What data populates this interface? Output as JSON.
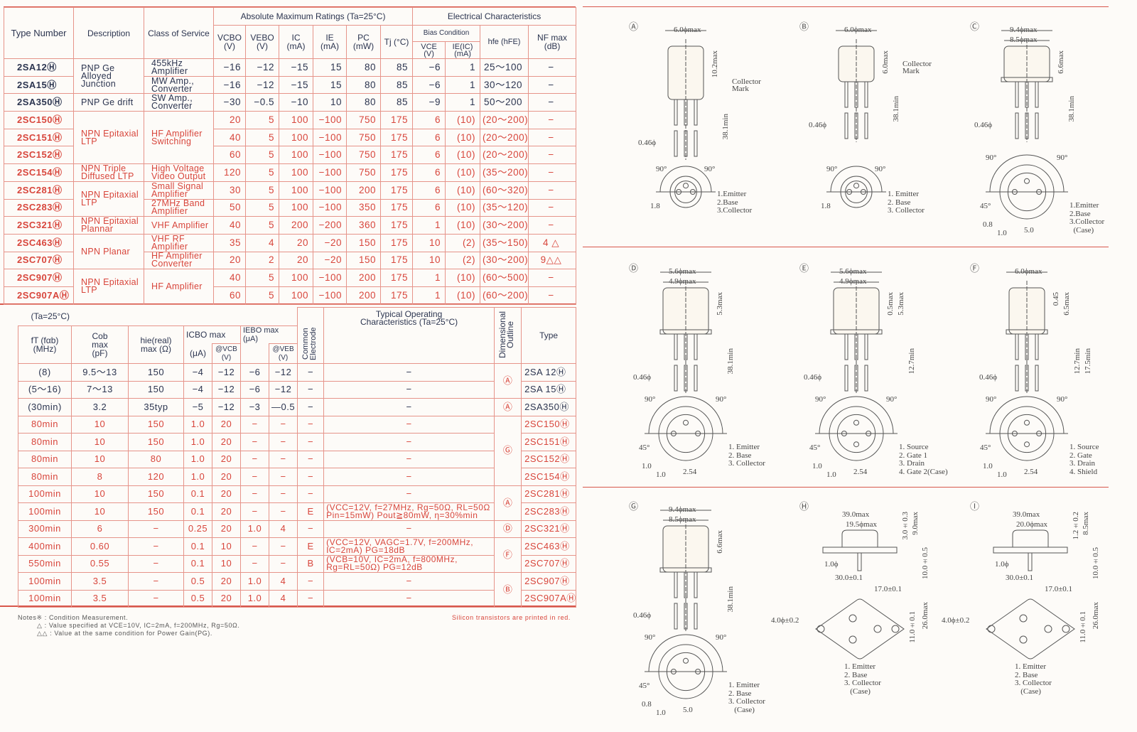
{
  "top_table": {
    "headers": {
      "type_number": "Type Number",
      "description": "Description",
      "class_of_service": "Class of Service",
      "abs_max": "Absolute Maximum Ratings (Ta=25°C)",
      "electrical": "Electrical Characteristics",
      "vcbo": "VCBO (V)",
      "vebo": "VEBO (V)",
      "ic": "IC (mA)",
      "ie": "IE (mA)",
      "pc": "PC (mW)",
      "tj": "Tj (°C)",
      "bias": "Bias Condition",
      "vce": "VCE (V)",
      "ie_ic": "IE(IC) (mA)",
      "hfe": "hfe (hFE)",
      "nf": "NF max (dB)"
    },
    "rows": [
      {
        "type": "2SA12Ⓗ",
        "red": false,
        "vals": [
          "−16",
          "−12",
          "−15",
          "15",
          "80",
          "85",
          "−6",
          "1",
          "25〜100",
          "−"
        ]
      },
      {
        "type": "2SA15Ⓗ",
        "red": false,
        "vals": [
          "−16",
          "−12",
          "−15",
          "15",
          "80",
          "85",
          "−6",
          "1",
          "30〜120",
          "−"
        ]
      },
      {
        "type": "2SA350Ⓗ",
        "red": false,
        "vals": [
          "−30",
          "−0.5",
          "−10",
          "10",
          "80",
          "85",
          "−9",
          "1",
          "50〜200",
          "−"
        ]
      },
      {
        "type": "2SC150Ⓗ",
        "red": true,
        "vals": [
          "20",
          "5",
          "100",
          "−100",
          "750",
          "175",
          "6",
          "(10)",
          "(20〜200)",
          "−"
        ]
      },
      {
        "type": "2SC151Ⓗ",
        "red": true,
        "vals": [
          "40",
          "5",
          "100",
          "−100",
          "750",
          "175",
          "6",
          "(10)",
          "(20〜200)",
          "−"
        ]
      },
      {
        "type": "2SC152Ⓗ",
        "red": true,
        "vals": [
          "60",
          "5",
          "100",
          "−100",
          "750",
          "175",
          "6",
          "(10)",
          "(20〜200)",
          "−"
        ]
      },
      {
        "type": "2SC154Ⓗ",
        "red": true,
        "vals": [
          "120",
          "5",
          "100",
          "−100",
          "750",
          "175",
          "6",
          "(10)",
          "(35〜200)",
          "−"
        ]
      },
      {
        "type": "2SC281Ⓗ",
        "red": true,
        "vals": [
          "30",
          "5",
          "100",
          "−100",
          "200",
          "175",
          "6",
          "(10)",
          "(60〜320)",
          "−"
        ]
      },
      {
        "type": "2SC283Ⓗ",
        "red": true,
        "vals": [
          "50",
          "5",
          "100",
          "−100",
          "350",
          "175",
          "6",
          "(10)",
          "(35〜120)",
          "−"
        ]
      },
      {
        "type": "2SC321Ⓗ",
        "red": true,
        "vals": [
          "40",
          "5",
          "200",
          "−200",
          "360",
          "175",
          "1",
          "(10)",
          "(30〜200)",
          "−"
        ]
      },
      {
        "type": "2SC463Ⓗ",
        "red": true,
        "vals": [
          "35",
          "4",
          "20",
          "−20",
          "150",
          "175",
          "10",
          "(2)",
          "(35〜150)",
          "4 △"
        ]
      },
      {
        "type": "2SC707Ⓗ",
        "red": true,
        "vals": [
          "20",
          "2",
          "20",
          "−20",
          "150",
          "175",
          "10",
          "(2)",
          "(30〜200)",
          "9△△"
        ]
      },
      {
        "type": "2SC907Ⓗ",
        "red": true,
        "vals": [
          "40",
          "5",
          "100",
          "−100",
          "200",
          "175",
          "1",
          "(10)",
          "(60〜500)",
          "−"
        ]
      },
      {
        "type": "2SC907AⒽ",
        "red": true,
        "vals": [
          "60",
          "5",
          "100",
          "−100",
          "200",
          "175",
          "1",
          "(10)",
          "(60〜200)",
          "−"
        ]
      }
    ],
    "descriptions": [
      {
        "text": "PNP Ge Alloyed Junction",
        "span": 2
      },
      {
        "text": "PNP Ge drift",
        "span": 1
      },
      {
        "text": "NPN Epitaxial LTP",
        "span": 3
      },
      {
        "text": "NPN Triple Diffused LTP",
        "span": 1
      },
      {
        "text": "NPN Epitaxial LTP",
        "span": 2
      },
      {
        "text": "NPN Epitaxial Plannar",
        "span": 1
      },
      {
        "text": "NPN Planar",
        "span": 2
      },
      {
        "text": "NPN Epitaxial LTP",
        "span": 2
      }
    ],
    "classes": [
      {
        "text": "455kHz Amplifier",
        "span": 1
      },
      {
        "text": "MW Amp., Converter",
        "span": 1
      },
      {
        "text": "SW Amp., Converter",
        "span": 1
      },
      {
        "text": "HF Amplifier Switching",
        "span": 3
      },
      {
        "text": "High Voltage Video Output",
        "span": 1
      },
      {
        "text": "Small Signal Amplifier",
        "span": 1
      },
      {
        "text": "27MHz Band Amplifier",
        "span": 1
      },
      {
        "text": "VHF Amplifier",
        "span": 1
      },
      {
        "text": "VHF RF Amplifier",
        "span": 1
      },
      {
        "text": "HF Amplifier Converter",
        "span": 1
      },
      {
        "text": "HF Amplifier",
        "span": 2
      }
    ]
  },
  "bottom_table": {
    "headers": {
      "ta": "(Ta=25°C)",
      "typical": "Typical Operating Characteristics (Ta=25°C)",
      "ft": "fT (fαb) (MHz)",
      "cob": "Cob max (pF)",
      "hie": "hie(real) max (Ω)",
      "icbo": "ICBO max",
      "icbo_unit": "(μA)",
      "vcb": "@VCB (V)",
      "iebo": "IEBO max (μA)",
      "veb": "@VEB (V)",
      "common": "Common Electrode",
      "dimensional": "Dimensional Outline",
      "type": "Type"
    },
    "rows": [
      {
        "red": false,
        "vals": [
          "(8)",
          "9.5〜13",
          "150",
          "−4",
          "−12",
          "−6",
          "−12",
          "−"
        ],
        "typical": "−",
        "type": "2SA 12Ⓗ"
      },
      {
        "red": false,
        "vals": [
          "(5〜16)",
          "7〜13",
          "150",
          "−4",
          "−12",
          "−6",
          "−12",
          "−"
        ],
        "typical": "−",
        "type": "2SA 15Ⓗ"
      },
      {
        "red": false,
        "vals": [
          "(30min)",
          "3.2",
          "35typ",
          "−5",
          "−12",
          "−3",
          "—0.5",
          "−"
        ],
        "typical": "−",
        "type": "2SA350Ⓗ"
      },
      {
        "red": true,
        "vals": [
          "80min",
          "10",
          "150",
          "1.0",
          "20",
          "−",
          "−",
          "−"
        ],
        "typical": "−",
        "type": "2SC150Ⓗ"
      },
      {
        "red": true,
        "vals": [
          "80min",
          "10",
          "150",
          "1.0",
          "20",
          "−",
          "−",
          "−"
        ],
        "typical": "−",
        "type": "2SC151Ⓗ"
      },
      {
        "red": true,
        "vals": [
          "80min",
          "10",
          "80",
          "1.0",
          "20",
          "−",
          "−",
          "−"
        ],
        "typical": "−",
        "type": "2SC152Ⓗ"
      },
      {
        "red": true,
        "vals": [
          "80min",
          "8",
          "120",
          "1.0",
          "20",
          "−",
          "−",
          "−"
        ],
        "typical": "−",
        "type": "2SC154Ⓗ"
      },
      {
        "red": true,
        "vals": [
          "100min",
          "10",
          "150",
          "0.1",
          "20",
          "−",
          "−",
          "−"
        ],
        "typical": "−",
        "type": "2SC281Ⓗ"
      },
      {
        "red": true,
        "vals": [
          "100min",
          "10",
          "150",
          "0.1",
          "20",
          "−",
          "−",
          "E"
        ],
        "typical": "(VCC=12V, f=27MHz, Rg=50Ω, RL=50Ω Pin=15mW) Pout≧80mW, η=30%min",
        "type": "2SC283Ⓗ"
      },
      {
        "red": true,
        "vals": [
          "300min",
          "6",
          "−",
          "0.25",
          "20",
          "1.0",
          "4",
          "−"
        ],
        "typical": "−",
        "type": "2SC321Ⓗ"
      },
      {
        "red": true,
        "vals": [
          "400min",
          "0.60",
          "−",
          "0.1",
          "10",
          "−",
          "−",
          "E"
        ],
        "typical": "(VCC=12V, VAGC=1.7V, f=200MHz, IC=2mA) PG=18dB",
        "type": "2SC463Ⓗ"
      },
      {
        "red": true,
        "vals": [
          "550min",
          "0.55",
          "−",
          "0.1",
          "10",
          "−",
          "−",
          "B"
        ],
        "typical": "(VCB=10V, IC=2mA, f=800MHz, Rg=RL=50Ω) PG=12dB",
        "type": "2SC707Ⓗ"
      },
      {
        "red": true,
        "vals": [
          "100min",
          "3.5",
          "−",
          "0.5",
          "20",
          "1.0",
          "4",
          "−"
        ],
        "typical": "−",
        "type": "2SC907Ⓗ"
      },
      {
        "red": true,
        "vals": [
          "100min",
          "3.5",
          "−",
          "0.5",
          "20",
          "1.0",
          "4",
          "−"
        ],
        "typical": "−",
        "type": "2SC907AⒽ"
      }
    ],
    "outlines": [
      {
        "text": "Ⓐ",
        "span": 2
      },
      {
        "text": "Ⓐ",
        "span": 1
      },
      {
        "text": "Ⓖ",
        "span": 4
      },
      {
        "text": "Ⓐ",
        "span": 2
      },
      {
        "text": "Ⓓ",
        "span": 1
      },
      {
        "text": "Ⓕ",
        "span": 2
      },
      {
        "text": "Ⓑ",
        "span": 2
      }
    ]
  },
  "notes": {
    "line1": "Notes※ : Condition Measurement.",
    "line2": "△ : Value specified at VCE=10V, IC=2mA, f=200MHz, Rg=50Ω.",
    "line3": "△△ : Value at the same condition for Power Gain(PG).",
    "silicon": "Silicon transistors are printed in red."
  },
  "outlines": [
    {
      "letter": "Ⓐ",
      "kind": "can",
      "widths": [
        "6.0ϕmax"
      ],
      "heights": [
        "10.2max",
        "38.1min"
      ],
      "lead": "0.46ϕ",
      "mark": "Collector Mark",
      "bottom": [
        "90°",
        "90°",
        "1.8"
      ],
      "legend": [
        "1.Emitter",
        "2.Base",
        "3.Collector"
      ]
    },
    {
      "letter": "Ⓑ",
      "kind": "can",
      "widths": [
        "6.0ϕmax"
      ],
      "heights": [
        "6.0max",
        "38.1min"
      ],
      "lead": "0.46ϕ",
      "mark": "Collector Mark",
      "bottom": [
        "90°",
        "90°",
        "1.8"
      ],
      "legend": [
        "1. Emitter",
        "2. Base",
        "3. Collector"
      ]
    },
    {
      "letter": "Ⓒ",
      "kind": "can",
      "widths": [
        "9.4ϕmax",
        "8.5ϕmax"
      ],
      "heights": [
        "6.6max",
        "38.1min"
      ],
      "lead": "0.46ϕ",
      "bottom": [
        "90°",
        "90°",
        "45°",
        "0.8",
        "1.0",
        "5.0"
      ],
      "legend": [
        "1.Emitter",
        "2.Base",
        "3.Collector",
        "  (Case)"
      ]
    },
    {
      "letter": "Ⓓ",
      "kind": "can",
      "widths": [
        "5.6ϕmax",
        "4.9ϕmax"
      ],
      "heights": [
        "5.3max",
        "38.1min"
      ],
      "lead": "0.46ϕ",
      "bottom": [
        "90°",
        "90°",
        "45°",
        "1.0",
        "1.0",
        "2.54"
      ],
      "legend": [
        "1. Emitter",
        "2. Base",
        "3. Collector"
      ]
    },
    {
      "letter": "Ⓔ",
      "kind": "can",
      "widths": [
        "5.6ϕmax",
        "4.9ϕmax"
      ],
      "heights": [
        "0.5max",
        "5.3max",
        "12.7min"
      ],
      "lead": "0.46ϕ",
      "bottom": [
        "90°",
        "90°",
        "45°",
        "1.0",
        "1.0",
        "2.54"
      ],
      "legend": [
        "1. Source",
        "2. Gate 1",
        "3. Drain",
        "4. Gate 2(Case)"
      ]
    },
    {
      "letter": "Ⓕ",
      "kind": "can",
      "widths": [
        "6.0ϕmax"
      ],
      "heights": [
        "0.45",
        "6.5max",
        "12.7min",
        "17.5min"
      ],
      "lead": "0.46ϕ",
      "bottom": [
        "90°",
        "90°",
        "45°",
        "1.0",
        "1.0",
        "2.54"
      ],
      "legend": [
        "1. Source",
        "2. Gate",
        "3. Drain",
        "4. Shield"
      ]
    },
    {
      "letter": "Ⓖ",
      "kind": "can",
      "widths": [
        "9.4ϕmax",
        "8.5ϕmax"
      ],
      "heights": [
        "6.6max",
        "38.1min"
      ],
      "lead": "0.46ϕ",
      "bottom": [
        "90°",
        "90°",
        "45°",
        "0.8",
        "1.0",
        "5.0"
      ],
      "legend": [
        "1. Emitter",
        "2. Base",
        "3. Collector",
        "   (Case)"
      ]
    },
    {
      "letter": "Ⓗ",
      "kind": "flange",
      "widths": [
        "39.0max",
        "19.5ϕmax"
      ],
      "heights": [
        "3.0±0.3",
        "9.0max",
        "10.0±0.5"
      ],
      "lead": "1.0ϕ",
      "bottom": [
        "30.0±0.1",
        "17.0±0.1",
        "4.0ϕ±0.2",
        "11.0±0.1",
        "26.0max"
      ],
      "legend": [
        "1. Emitter",
        "2. Base",
        "3. Collector",
        "   (Case)"
      ]
    },
    {
      "letter": "Ⓘ",
      "kind": "flange",
      "widths": [
        "39.0max",
        "20.0ϕmax"
      ],
      "heights": [
        "1.2±0.2",
        "8.5max",
        "10.0±0.5"
      ],
      "lead": "1.0ϕ",
      "bottom": [
        "30.0±0.1",
        "17.0±0.1",
        "4.0ϕ±0.2",
        "11.0±0.1",
        "26.0max"
      ],
      "legend": [
        "1. Emitter",
        "2. Base",
        "3. Collector",
        "   (Case)"
      ]
    }
  ]
}
